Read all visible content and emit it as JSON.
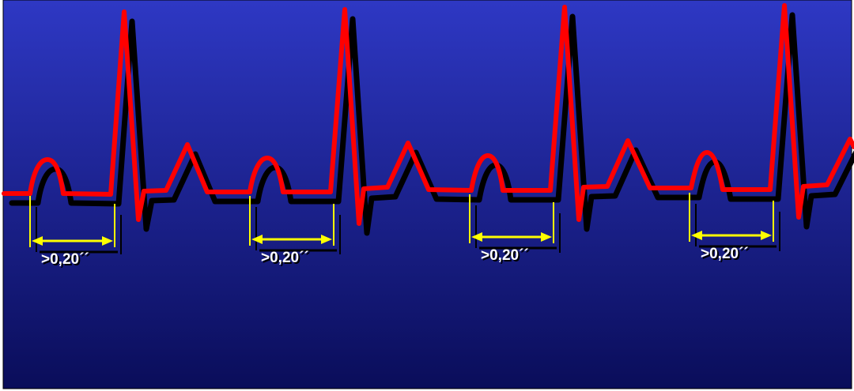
{
  "colors": {
    "background_top": "#2e38c4",
    "background_bottom": "#0a0d5a",
    "trace": "#ff0000",
    "trace_shadow": "#000000",
    "marker": "#ffff00",
    "label_text": "#ffffff"
  },
  "intervals": [
    {
      "label": ">0,20´´"
    },
    {
      "label": ">0,20´´"
    },
    {
      "label": ">0,20´´"
    },
    {
      "label": ">0,20´´"
    }
  ]
}
